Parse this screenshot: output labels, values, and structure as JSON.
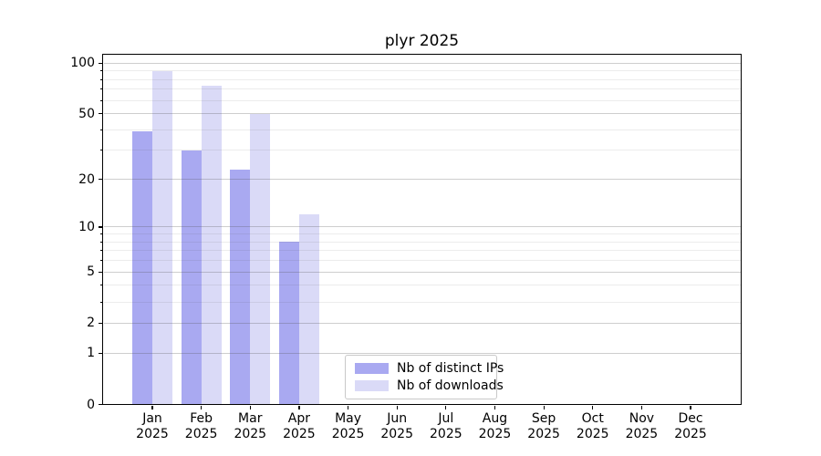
{
  "chart_data": {
    "type": "bar",
    "title": "plyr 2025",
    "categories": [
      "Jan 2025",
      "Feb 2025",
      "Mar 2025",
      "Apr 2025",
      "May 2025",
      "Jun 2025",
      "Jul 2025",
      "Aug 2025",
      "Sep 2025",
      "Oct 2025",
      "Nov 2025",
      "Dec 2025"
    ],
    "x_tick_months": [
      "Jan",
      "Feb",
      "Mar",
      "Apr",
      "May",
      "Jun",
      "Jul",
      "Aug",
      "Sep",
      "Oct",
      "Nov",
      "Dec"
    ],
    "x_tick_year": "2025",
    "series": [
      {
        "name": "Nb of distinct IPs",
        "color": "#a9a9f1",
        "values": [
          39,
          30,
          23,
          8,
          0,
          0,
          0,
          0,
          0,
          0,
          0,
          0
        ]
      },
      {
        "name": "Nb of downloads",
        "color": "#dadaf7",
        "values": [
          90,
          73,
          50,
          12,
          0,
          0,
          0,
          0,
          0,
          0,
          0,
          0
        ]
      }
    ],
    "y_scale": "log1p",
    "ylim": [
      0,
      112
    ],
    "y_major_ticks": [
      0,
      1,
      2,
      5,
      10,
      20,
      50,
      100
    ],
    "y_minor_ticks": [
      3,
      4,
      6,
      7,
      8,
      9,
      30,
      40,
      60,
      70,
      80,
      90
    ],
    "grid": "horizontal, major and minor, drawn over bars",
    "legend_position": "bottom center-left inside plot",
    "axis_color": "#000000",
    "background_color": "#ffffff"
  }
}
